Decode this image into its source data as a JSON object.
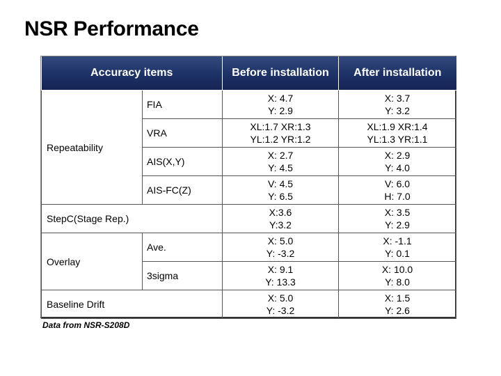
{
  "title": "NSR Performance",
  "headers": {
    "items": "Accuracy items",
    "before": "Before installation",
    "after": "After installation"
  },
  "rows": {
    "repeatability": {
      "label": "Repeatability",
      "fia": {
        "name": "FIA",
        "before": [
          "X: 4.7",
          "Y: 2.9"
        ],
        "after": [
          "X: 3.7",
          "Y: 3.2"
        ]
      },
      "vra": {
        "name": "VRA",
        "before": [
          "XL:1.7 XR:1.3",
          "YL:1.2 YR:1.2"
        ],
        "after": [
          "XL:1.9 XR:1.4",
          "YL:1.3 YR:1.1"
        ]
      },
      "ais_xy": {
        "name": "AIS(X,Y)",
        "before": [
          "X: 2.7",
          "Y: 4.5"
        ],
        "after": [
          "X: 2.9",
          "Y: 4.0"
        ]
      },
      "ais_fc": {
        "name": "AIS-FC(Z)",
        "before": [
          "V: 4.5",
          "Y: 6.5"
        ],
        "after": [
          "V: 6.0",
          "H: 7.0"
        ]
      }
    },
    "stepc": {
      "label": "StepC(Stage Rep.)",
      "before": [
        "X:3.6",
        "Y:3.2"
      ],
      "after": [
        "X: 3.5",
        "Y: 2.9"
      ]
    },
    "overlay": {
      "label": "Overlay",
      "ave": {
        "name": "Ave.",
        "before": [
          "X: 5.0",
          "Y: -3.2"
        ],
        "after": [
          "X: -1.1",
          "Y: 0.1"
        ]
      },
      "sigma": {
        "name": "3sigma",
        "before": [
          "X: 9.1",
          "Y: 13.3"
        ],
        "after": [
          "X: 10.0",
          "Y: 8.0"
        ]
      }
    },
    "baseline": {
      "label": "Baseline Drift",
      "before": [
        "X: 5.0",
        "Y: -3.2"
      ],
      "after": [
        "X: 1.5",
        "Y: 2.6"
      ]
    }
  },
  "footnote": "Data from NSR-S208D",
  "colors": {
    "header_bg": "#1d3167",
    "header_text": "#ffffff"
  }
}
